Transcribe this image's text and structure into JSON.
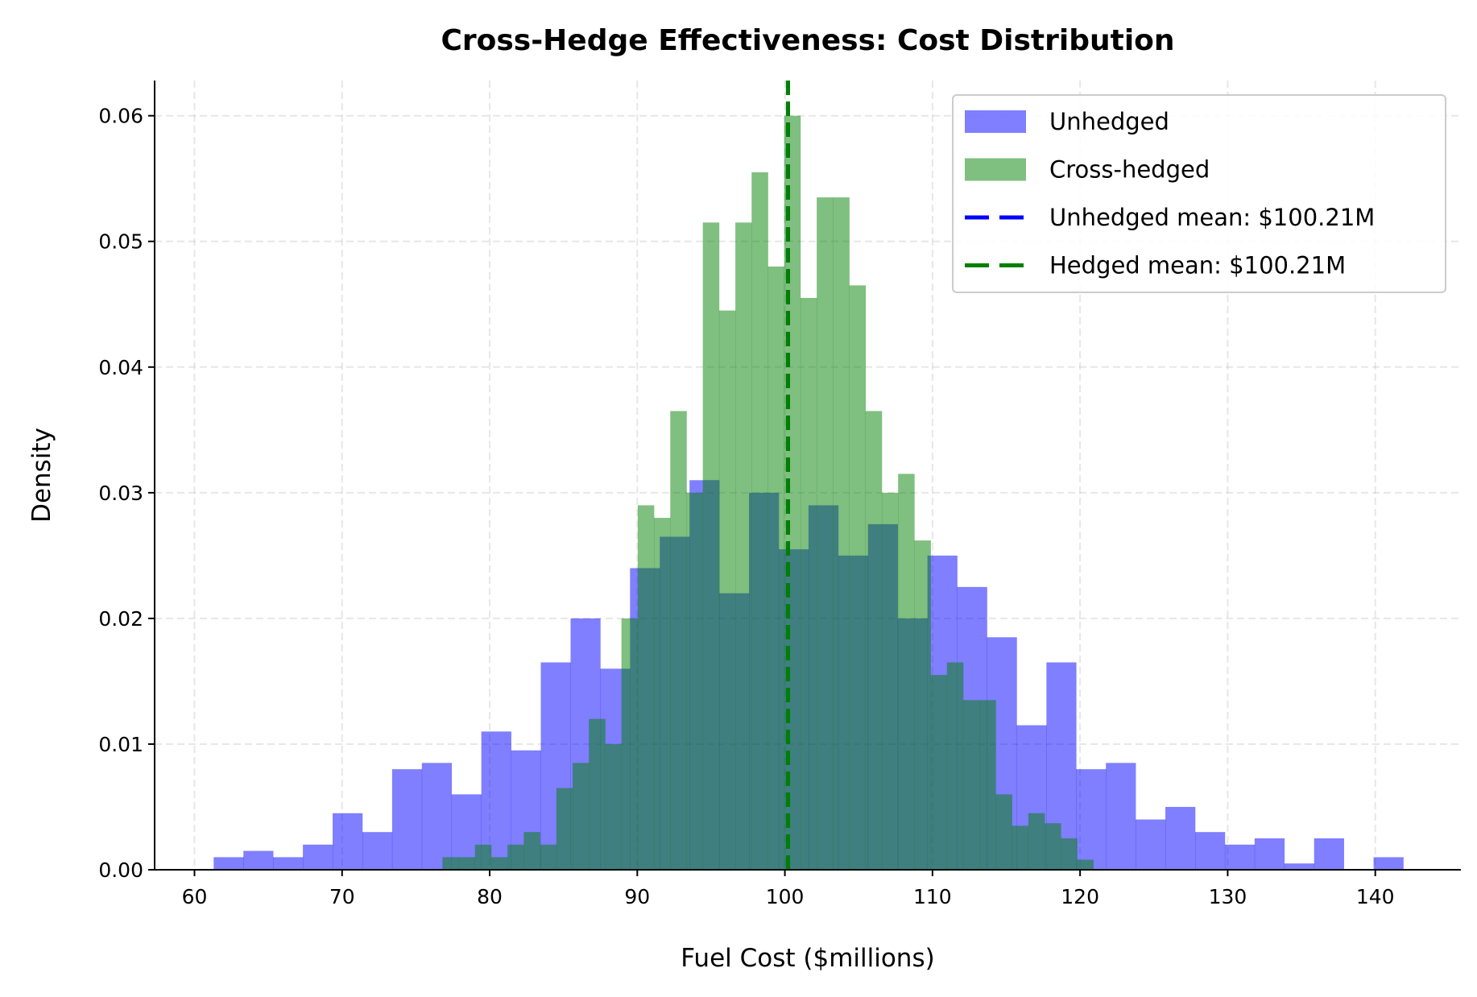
{
  "chart_data": {
    "type": "histogram",
    "title": "Cross-Hedge Effectiveness: Cost Distribution",
    "xlabel": "Fuel Cost ($millions)",
    "ylabel": "Density",
    "xlim": [
      57.3,
      145.8
    ],
    "ylim": [
      0,
      0.0628
    ],
    "xticks": [
      60,
      70,
      80,
      90,
      100,
      110,
      120,
      130,
      140
    ],
    "yticks": [
      0.0,
      0.01,
      0.02,
      0.03,
      0.04,
      0.05,
      0.06
    ],
    "grid": true,
    "legend_placement": "top-right",
    "series": [
      {
        "name": "Unhedged",
        "color": "#0000ff",
        "opacity": 0.5,
        "bin_start": 61.3,
        "bin_width": 2.015,
        "densities": [
          0.001,
          0.0015,
          0.001,
          0.002,
          0.0045,
          0.003,
          0.008,
          0.0085,
          0.006,
          0.011,
          0.0095,
          0.0165,
          0.02,
          0.016,
          0.024,
          0.0265,
          0.031,
          0.022,
          0.03,
          0.0255,
          0.029,
          0.025,
          0.0275,
          0.02,
          0.025,
          0.0225,
          0.0185,
          0.0115,
          0.0165,
          0.008,
          0.0085,
          0.004,
          0.005,
          0.003,
          0.002,
          0.0025,
          0.0005,
          0.0025,
          0,
          0.001
        ]
      },
      {
        "name": "Cross-hedged",
        "color": "#008000",
        "opacity": 0.5,
        "bin_start": 76.8,
        "bin_width": 1.1025,
        "densities": [
          0.001,
          0.001,
          0.002,
          0.001,
          0.002,
          0.003,
          0.002,
          0.0065,
          0.0085,
          0.012,
          0.01,
          0.02,
          0.029,
          0.028,
          0.0365,
          0.03,
          0.0515,
          0.0445,
          0.0515,
          0.0555,
          0.048,
          0.06,
          0.0455,
          0.0535,
          0.0535,
          0.0465,
          0.0365,
          0.03,
          0.0315,
          0.0262,
          0.0155,
          0.0165,
          0.0135,
          0.0135,
          0.006,
          0.0035,
          0.0045,
          0.0037,
          0.0025,
          0.0008
        ]
      }
    ],
    "mean_lines": [
      {
        "name": "Unhedged mean: $100.21M",
        "value": 100.21,
        "color": "#0000ff"
      },
      {
        "name": "Hedged mean: $100.21M",
        "value": 100.21,
        "color": "#008000"
      }
    ]
  }
}
